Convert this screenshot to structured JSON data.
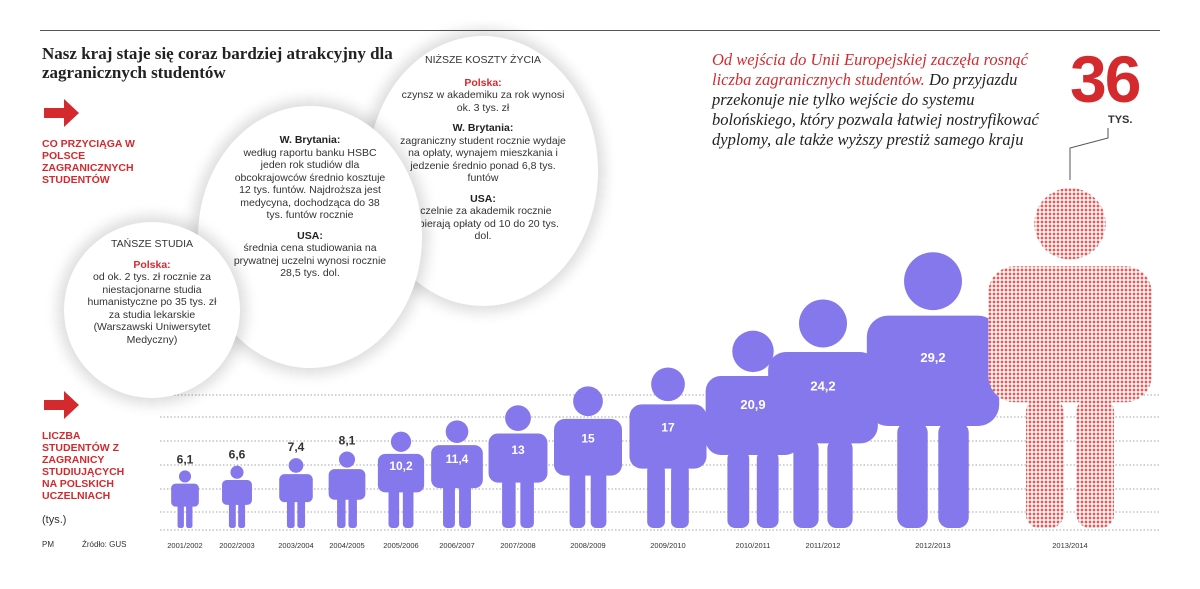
{
  "headline": "Nasz kraj staje się coraz bardziej atrakcyjny dla zagranicznych studentów",
  "attract_label": "CO PRZYCIĄGA W POLSCE ZAGRANICZNYCH STUDENTÓW",
  "students_label": "LICZBA STUDENTÓW Z ZAGRANICY STUDIUJĄCYCH NA POLSKICH UCZELNIACH",
  "unit_label": "(tys.)",
  "source_prefix": "PM",
  "source": "Źródło: GUS",
  "bubbles": {
    "cheaper": {
      "heading": "TAŃSZE STUDIA",
      "poland_head": "Polska:",
      "poland_text": "od ok. 2 tys. zł rocznie za niestacjonarne studia humanistyczne po 35 tys. zł za studia lekarskie (Warszawski Uniwersytet Medyczny)"
    },
    "uk_us_tuition": {
      "uk_head": "W. Brytania:",
      "uk_text": "według raportu banku HSBC jeden rok studiów dla obcokrajowców średnio kosztuje 12 tys. funtów. Najdroższa jest medycyna, dochodząca do 38 tys. funtów rocznie",
      "usa_head": "USA:",
      "usa_text": "średnia cena studiowania na prywatnej uczelni wynosi rocznie 28,5 tys. dol."
    },
    "living": {
      "heading": "NIŻSZE KOSZTY ŻYCIA",
      "poland_head": "Polska:",
      "poland_text": "czynsz w akademiku za rok wynosi ok. 3 tys. zł",
      "uk_head": "W. Brytania:",
      "uk_text": "zagraniczny student rocznie wydaje na opłaty, wynajem mieszkania i jedzenie średnio ponad 6,8 tys. funtów",
      "usa_head": "USA:",
      "usa_text": "uczelnie za akademik rocznie pobierają opłaty od 10 do 20 tys. dol."
    }
  },
  "quote": {
    "red": "Od wejścia do Unii Europejskiej zaczęła rosnąć liczba zagranicznych studentów.",
    "dark": "Do przyjazdu przekonuje nie tylko wejście do systemu bolońskiego, który pozwala łatwiej nostryfikować dyplomy, ale także wyższy prestiż samego kraju"
  },
  "highlight": {
    "value": "36",
    "unit": "TYS."
  },
  "colors": {
    "accent_red": "#d42a2e",
    "figure_purple": "#8577ec",
    "figure_red_dots": "#e25c5c"
  },
  "chart_data": {
    "type": "bar",
    "title": "",
    "xlabel": "",
    "ylabel": "",
    "categories": [
      "2001/2002",
      "2002/2003",
      "2003/2004",
      "2004/2005",
      "2005/2006",
      "2006/2007",
      "2007/2008",
      "2008/2009",
      "2009/2010",
      "2010/2011",
      "2011/2012",
      "2012/2013",
      "2013/2014"
    ],
    "values": [
      6.1,
      6.6,
      7.4,
      8.1,
      10.2,
      11.4,
      13,
      15,
      17,
      20.9,
      24.2,
      29.2,
      36
    ],
    "labels": [
      "6,1",
      "6,6",
      "7,4",
      "8,1",
      "10,2",
      "11,4",
      "13",
      "15",
      "17",
      "20,9",
      "24,2",
      "29,2",
      "36"
    ],
    "highlighted_last": true,
    "grid": true
  }
}
